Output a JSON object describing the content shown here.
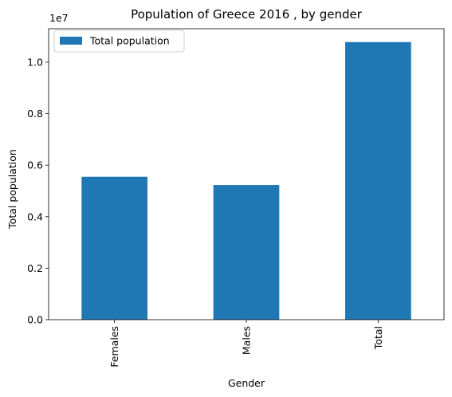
{
  "chart_data": {
    "type": "bar",
    "title": "Population of Greece 2016 , by gender",
    "xlabel": "Gender",
    "ylabel": "Total population",
    "categories": [
      "Females",
      "Males",
      "Total"
    ],
    "series": [
      {
        "name": "Total population",
        "values": [
          5550000,
          5230000,
          10780000
        ],
        "color": "#1f77b4"
      }
    ],
    "ylim": [
      0,
      11300000
    ],
    "yticks": [
      0,
      2000000,
      4000000,
      6000000,
      8000000,
      10000000
    ],
    "ytick_labels": [
      "0.0",
      "0.2",
      "0.4",
      "0.6",
      "0.8",
      "1.0"
    ],
    "y_offset_label": "1e7",
    "legend": {
      "placement": "top-left"
    },
    "grid": false,
    "x_tick_rotation": "vertical"
  }
}
